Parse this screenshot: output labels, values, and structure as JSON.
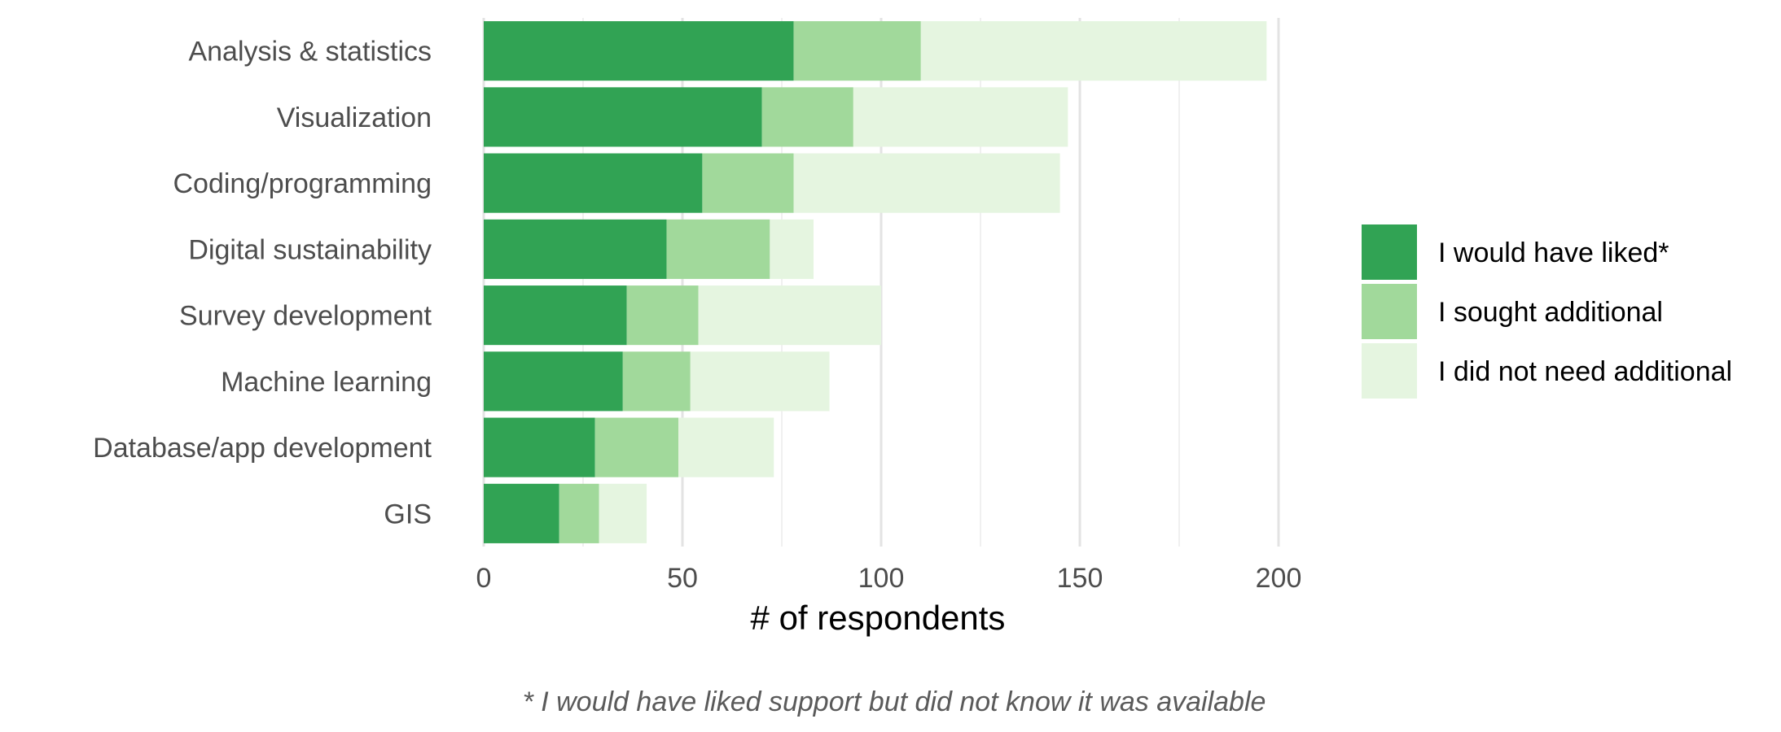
{
  "chart_data": {
    "type": "bar",
    "orientation": "horizontal",
    "stacked": true,
    "categories": [
      "Analysis & statistics",
      "Visualization",
      "Coding/programming",
      "Digital sustainability",
      "Survey development",
      "Machine learning",
      "Database/app development",
      "GIS"
    ],
    "series": [
      {
        "name": "I would have liked*",
        "color": "#31a354",
        "values": [
          78,
          70,
          55,
          46,
          36,
          35,
          28,
          19
        ]
      },
      {
        "name": "I sought additional",
        "color": "#a1d99b",
        "values": [
          32,
          23,
          23,
          26,
          18,
          17,
          21,
          10
        ]
      },
      {
        "name": "I did not need additional",
        "color": "#e5f5e0",
        "values": [
          87,
          54,
          67,
          11,
          46,
          35,
          24,
          12
        ]
      }
    ],
    "xlabel": "# of respondents",
    "xlim": [
      0,
      200
    ],
    "xticks": [
      0,
      50,
      100,
      150,
      200
    ],
    "grid": true,
    "legend_position": "right",
    "caption": "* I would have liked support but did not know it was available"
  }
}
